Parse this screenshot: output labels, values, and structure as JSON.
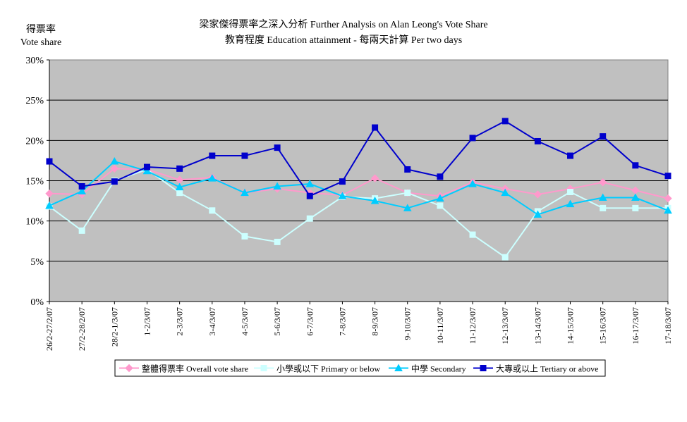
{
  "chart_data": {
    "type": "line",
    "title_line1": "梁家傑得票率之深入分析 Further Analysis on Alan Leong's Vote Share",
    "title_line2": "教育程度 Education attainment - 每兩天計算 Per two days",
    "ylabel_line1": "得票率",
    "ylabel_line2": "Vote share",
    "ylim": [
      0,
      30
    ],
    "yticks": [
      0,
      5,
      10,
      15,
      20,
      25,
      30
    ],
    "ytick_labels": [
      "0%",
      "5%",
      "10%",
      "15%",
      "20%",
      "25%",
      "30%"
    ],
    "grid": true,
    "legend_position": "bottom",
    "categories": [
      "26/2-27/2/07",
      "27/2-28/2/07",
      "28/2-1/3/07",
      "1-2/3/07",
      "2-3/3/07",
      "3-4/3/07",
      "4-5/3/07",
      "5-6/3/07",
      "6-7/3/07",
      "7-8/3/07",
      "8-9/3/07",
      "9-10/3/07",
      "10-11/3/07",
      "11-12/3/07",
      "12-13/3/07",
      "13-14/3/07",
      "14-15/3/07",
      "15-16/3/07",
      "16-17/3/07",
      "17-18/3/07"
    ],
    "series": [
      {
        "name": "整體得票率 Overall vote share",
        "color": "#ff99cc",
        "marker": "diamond",
        "values": [
          13.4,
          13.3,
          16.5,
          16.4,
          15.1,
          15.4,
          13.5,
          14.0,
          13.5,
          13.2,
          15.3,
          13.5,
          13.1,
          14.8,
          14.0,
          13.3,
          14.0,
          14.8,
          13.8,
          12.8
        ]
      },
      {
        "name": "小學或以下 Primary or below",
        "color": "#ccffff",
        "marker": "square",
        "values": [
          11.8,
          8.8,
          15.0,
          16.4,
          13.5,
          11.3,
          8.1,
          7.4,
          10.3,
          13.0,
          12.8,
          13.5,
          11.9,
          8.3,
          5.5,
          11.2,
          13.6,
          11.6,
          11.6,
          11.6
        ]
      },
      {
        "name": "中學 Secondary",
        "color": "#00ccff",
        "marker": "triangle",
        "values": [
          11.9,
          13.7,
          17.4,
          16.2,
          14.2,
          15.3,
          13.5,
          14.3,
          14.6,
          13.1,
          12.5,
          11.6,
          12.8,
          14.6,
          13.5,
          10.8,
          12.1,
          12.9,
          12.9,
          11.3
        ]
      },
      {
        "name": "大專或以上 Tertiary or above",
        "color": "#0000cc",
        "marker": "square",
        "values": [
          17.4,
          14.3,
          14.9,
          16.7,
          16.5,
          18.1,
          18.1,
          19.1,
          13.1,
          14.9,
          21.6,
          16.4,
          15.5,
          20.3,
          22.4,
          19.9,
          18.1,
          20.5,
          16.9,
          15.6
        ]
      }
    ]
  }
}
